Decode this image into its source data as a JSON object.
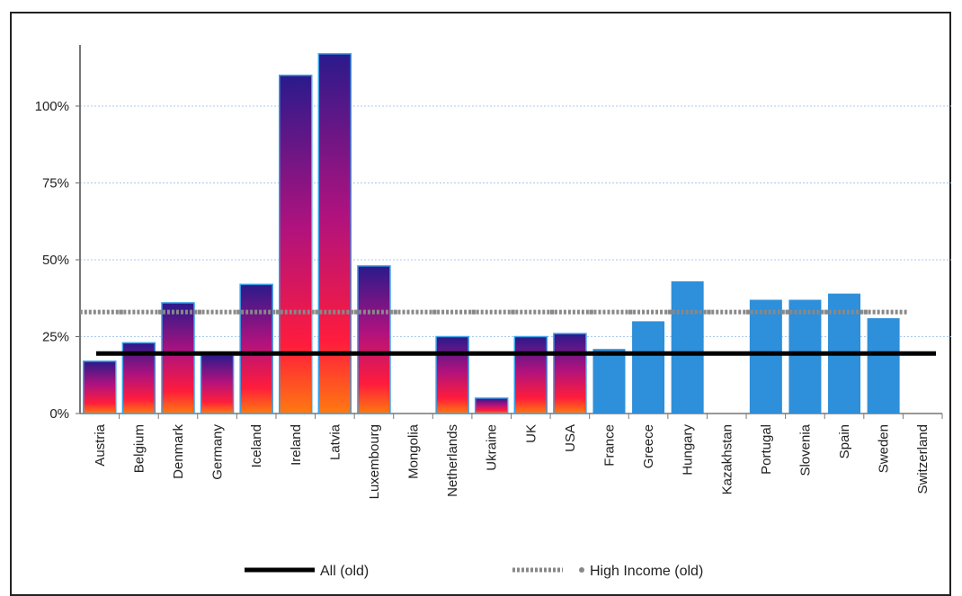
{
  "chart_data": {
    "type": "bar",
    "title": "",
    "xlabel": "",
    "ylabel": "",
    "ylim": [
      0,
      1.2
    ],
    "yticks": [
      {
        "value": 0,
        "label": "0%"
      },
      {
        "value": 0.25,
        "label": "25%"
      },
      {
        "value": 0.5,
        "label": "50%"
      },
      {
        "value": 0.75,
        "label": "75%"
      },
      {
        "value": 1.0,
        "label": "100%"
      }
    ],
    "grid": true,
    "legend_position": "bottom",
    "categories": [
      "Austria",
      "Belgium",
      "Denmark",
      "Germany",
      "Iceland",
      "Ireland",
      "Latvia",
      "Luxembourg",
      "Mongolia",
      "Netherlands",
      "Ukraine",
      "UK",
      "USA",
      "France",
      "Greece",
      "Hungary",
      "Kazakhstan",
      "Portugal",
      "Slovenia",
      "Spain",
      "Sweden",
      "Switzerland"
    ],
    "values": [
      0.17,
      0.23,
      0.36,
      0.19,
      0.42,
      1.1,
      1.17,
      0.48,
      null,
      0.25,
      0.05,
      0.25,
      0.26,
      0.21,
      0.3,
      0.43,
      null,
      0.37,
      0.37,
      0.39,
      0.31,
      null
    ],
    "bar_styles": [
      "gradient",
      "gradient",
      "gradient",
      "gradient",
      "gradient",
      "gradient",
      "gradient",
      "gradient",
      "gradient",
      "gradient",
      "gradient",
      "gradient",
      "gradient",
      "solid",
      "solid",
      "solid",
      "solid",
      "solid",
      "solid",
      "solid",
      "solid",
      "solid"
    ],
    "reference_lines": [
      {
        "name": "All (old)",
        "value": 0.195,
        "style": "solid"
      },
      {
        "name": "High Income (old)",
        "value": 0.33,
        "style": "dashed"
      }
    ],
    "colors": {
      "solid_bar": "#2e8fda",
      "gradient_top": "#2a1a8c",
      "gradient_mid": "#c0147a",
      "gradient_low": "#ff1c3c",
      "gradient_bottom": "#ff7a10",
      "all_line": "#000000",
      "high_income_line": "#888888",
      "gridline": "#a8c8ec"
    }
  },
  "legend": {
    "all_label": "All (old)",
    "high_income_label": "High Income (old)"
  }
}
